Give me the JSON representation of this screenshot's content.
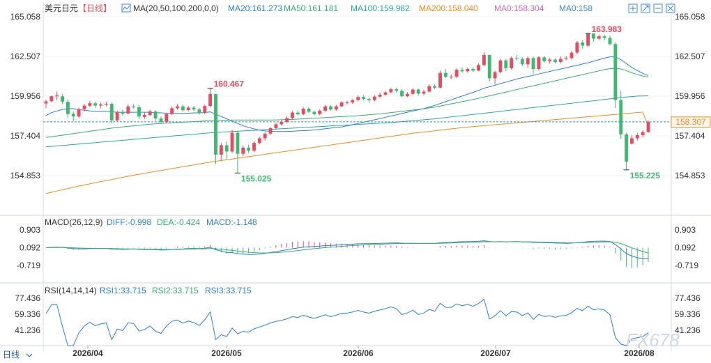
{
  "header": {
    "symbol": "美元日元",
    "period": "【日线】",
    "ma_params": "MA(20,50,100,200,0,0)",
    "ma_items": [
      {
        "label": "MA20:161.273",
        "color": "#2f7fd0"
      },
      {
        "label": "MA50:161.181",
        "color": "#3aaa74"
      },
      {
        "label": "MA100:159.982",
        "color": "#2aa6a6"
      },
      {
        "label": "MA200:158.040",
        "color": "#f08a24"
      },
      {
        "label": "MA0:158.304",
        "color": "#d46aa8"
      },
      {
        "label": "MA0:158",
        "color": "#3f86d8"
      }
    ],
    "toolbar_icons": [
      "image-icon",
      "zoom-in-icon",
      "zoom-out-icon",
      "close-icon"
    ]
  },
  "macd_header": {
    "label": "MACD(26,12,9)",
    "diff": "DIFF:-0.998",
    "dea": "DEA:-0.424",
    "macd": "MACD:-1.148"
  },
  "rsi_header": {
    "label": "RSI(14,14,14)",
    "rsi1": "RSI1:33.715",
    "rsi2": "RSI2:33.715",
    "rsi3": "RSI3:33.715"
  },
  "footer": {
    "period_tab": "日线",
    "x_labels": [
      "2026/04",
      "2026/05",
      "2026/06",
      "2026/07",
      "2026/08"
    ]
  },
  "watermark": "FX678",
  "current_price_tag": "158.307",
  "colors": {
    "up": "#e84a5f",
    "down": "#3dba6f",
    "ma20": "#2f7fd0",
    "ma50": "#3aaa74",
    "ma100": "#2aa6a6",
    "ma200": "#f08a24"
  },
  "chart_data": {
    "type": "candlestick",
    "price_axis_ticks": [
      "165.058",
      "162.507",
      "159.956",
      "157.404",
      "154.853"
    ],
    "macd_axis_ticks": [
      "0.903",
      "0.092",
      "-0.719"
    ],
    "rsi_axis_ticks": [
      "77.436",
      "59.336",
      "41.236"
    ],
    "annotations": [
      {
        "text": "160.467",
        "kind": "high"
      },
      {
        "text": "155.025",
        "kind": "low"
      },
      {
        "text": "163.983",
        "kind": "high"
      },
      {
        "text": "155.225",
        "kind": "low"
      }
    ],
    "candles": [
      [
        159.48,
        159.62,
        159.18,
        159.72,
        1
      ],
      [
        159.63,
        159.95,
        159.55,
        160.0,
        1
      ],
      [
        159.94,
        160.0,
        159.7,
        160.25,
        1
      ],
      [
        159.94,
        159.6,
        159.45,
        160.1,
        0
      ],
      [
        159.6,
        158.8,
        158.55,
        159.75,
        0
      ],
      [
        158.82,
        158.65,
        158.35,
        158.98,
        0
      ],
      [
        158.65,
        159.1,
        158.55,
        159.22,
        1
      ],
      [
        159.12,
        159.35,
        158.95,
        159.45,
        1
      ],
      [
        159.34,
        159.5,
        159.25,
        159.65,
        1
      ],
      [
        159.5,
        159.35,
        159.2,
        159.6,
        0
      ],
      [
        159.35,
        159.42,
        159.18,
        159.55,
        1
      ],
      [
        159.41,
        159.46,
        159.3,
        159.6,
        1
      ],
      [
        159.46,
        158.4,
        158.2,
        159.55,
        0
      ],
      [
        158.4,
        158.95,
        158.3,
        159.02,
        1
      ],
      [
        158.95,
        158.82,
        158.7,
        159.1,
        0
      ],
      [
        158.84,
        159.3,
        158.78,
        159.4,
        1
      ],
      [
        159.3,
        159.25,
        159.15,
        159.45,
        0
      ],
      [
        159.25,
        158.65,
        158.5,
        159.38,
        0
      ],
      [
        158.62,
        158.75,
        158.5,
        158.9,
        1
      ],
      [
        158.74,
        158.98,
        158.68,
        159.08,
        1
      ],
      [
        158.98,
        158.52,
        158.35,
        159.05,
        0
      ],
      [
        158.52,
        158.3,
        158.2,
        158.65,
        0
      ],
      [
        158.3,
        158.8,
        158.2,
        158.9,
        1
      ],
      [
        158.8,
        159.18,
        158.75,
        159.3,
        1
      ],
      [
        159.18,
        159.3,
        159.1,
        159.45,
        1
      ],
      [
        159.3,
        159.05,
        158.95,
        159.4,
        0
      ],
      [
        159.06,
        159.22,
        158.98,
        159.32,
        1
      ],
      [
        159.22,
        159.1,
        158.98,
        159.34,
        0
      ],
      [
        159.1,
        158.88,
        158.78,
        159.2,
        0
      ],
      [
        158.88,
        159.32,
        158.8,
        159.4,
        1
      ],
      [
        159.32,
        160.1,
        159.25,
        160.47,
        1
      ],
      [
        160.1,
        156.2,
        155.6,
        160.1,
        0
      ],
      [
        156.2,
        156.8,
        155.8,
        156.95,
        1
      ],
      [
        156.8,
        156.4,
        155.9,
        157.05,
        0
      ],
      [
        156.4,
        157.6,
        156.3,
        157.8,
        1
      ],
      [
        157.6,
        156.25,
        155.02,
        157.75,
        0
      ],
      [
        156.25,
        156.65,
        156.1,
        156.8,
        1
      ],
      [
        156.65,
        156.45,
        156.3,
        156.85,
        0
      ],
      [
        156.45,
        156.95,
        156.35,
        157.05,
        1
      ],
      [
        156.95,
        157.25,
        156.85,
        157.35,
        1
      ],
      [
        157.25,
        157.55,
        157.1,
        157.65,
        1
      ],
      [
        157.55,
        157.9,
        157.45,
        157.98,
        1
      ],
      [
        157.9,
        158.15,
        157.8,
        158.25,
        1
      ],
      [
        158.15,
        158.3,
        158.05,
        158.42,
        1
      ],
      [
        158.3,
        158.55,
        158.2,
        158.65,
        1
      ],
      [
        158.55,
        158.9,
        158.45,
        159.0,
        1
      ],
      [
        158.9,
        158.8,
        158.7,
        159.05,
        0
      ],
      [
        158.8,
        159.15,
        158.72,
        159.25,
        1
      ],
      [
        159.15,
        158.95,
        158.85,
        159.25,
        0
      ],
      [
        158.95,
        158.8,
        158.7,
        159.02,
        0
      ],
      [
        158.8,
        159.02,
        158.72,
        159.12,
        1
      ],
      [
        159.02,
        159.3,
        158.95,
        159.4,
        1
      ],
      [
        159.3,
        159.1,
        159.0,
        159.38,
        0
      ],
      [
        159.1,
        159.3,
        159.02,
        159.4,
        1
      ],
      [
        159.3,
        159.55,
        159.25,
        159.62,
        1
      ],
      [
        159.55,
        159.55,
        159.42,
        159.65,
        1
      ],
      [
        159.55,
        159.7,
        159.45,
        159.78,
        1
      ],
      [
        159.7,
        159.9,
        159.62,
        160.0,
        1
      ],
      [
        159.9,
        159.78,
        159.68,
        160.02,
        0
      ],
      [
        159.78,
        159.7,
        159.55,
        159.86,
        0
      ],
      [
        159.7,
        159.92,
        159.62,
        160.02,
        1
      ],
      [
        159.92,
        160.05,
        159.85,
        160.18,
        1
      ],
      [
        160.05,
        160.2,
        159.98,
        160.3,
        1
      ],
      [
        160.2,
        160.4,
        160.15,
        160.5,
        1
      ],
      [
        160.4,
        160.3,
        160.18,
        160.5,
        0
      ],
      [
        160.3,
        159.95,
        159.9,
        160.4,
        0
      ],
      [
        159.95,
        160.1,
        159.88,
        160.22,
        1
      ],
      [
        160.1,
        160.38,
        160.02,
        160.48,
        1
      ],
      [
        160.38,
        160.12,
        159.98,
        160.45,
        0
      ],
      [
        160.12,
        160.25,
        160.02,
        160.36,
        1
      ],
      [
        160.25,
        160.6,
        160.18,
        160.7,
        1
      ],
      [
        160.6,
        160.5,
        160.4,
        160.72,
        0
      ],
      [
        160.5,
        161.45,
        160.45,
        161.6,
        1
      ],
      [
        161.45,
        161.2,
        161.1,
        161.7,
        0
      ],
      [
        161.2,
        161.2,
        161.05,
        161.35,
        1
      ],
      [
        161.2,
        161.65,
        161.1,
        161.75,
        1
      ],
      [
        161.65,
        161.55,
        161.45,
        161.8,
        0
      ],
      [
        161.55,
        161.7,
        161.45,
        161.8,
        1
      ],
      [
        161.7,
        161.6,
        161.5,
        161.8,
        0
      ],
      [
        161.6,
        161.95,
        161.55,
        162.05,
        1
      ],
      [
        161.95,
        162.6,
        161.9,
        162.8,
        1
      ],
      [
        162.6,
        161.1,
        160.9,
        162.6,
        0
      ],
      [
        161.1,
        161.5,
        160.7,
        161.6,
        1
      ],
      [
        161.5,
        162.25,
        161.4,
        162.35,
        1
      ],
      [
        162.25,
        161.75,
        161.55,
        162.35,
        0
      ],
      [
        161.75,
        162.4,
        161.65,
        162.5,
        1
      ],
      [
        162.4,
        162.35,
        162.25,
        162.6,
        0
      ],
      [
        162.35,
        162.0,
        161.9,
        162.45,
        0
      ],
      [
        162.0,
        162.4,
        161.8,
        162.5,
        1
      ],
      [
        162.4,
        161.7,
        161.4,
        162.5,
        0
      ],
      [
        161.7,
        162.45,
        161.6,
        162.55,
        1
      ],
      [
        162.45,
        162.2,
        162.1,
        162.55,
        0
      ],
      [
        162.2,
        162.3,
        162.05,
        162.4,
        1
      ],
      [
        162.3,
        162.15,
        162.05,
        162.4,
        0
      ],
      [
        162.15,
        162.35,
        162.05,
        162.5,
        1
      ],
      [
        162.35,
        162.4,
        162.25,
        162.55,
        1
      ],
      [
        162.4,
        162.75,
        162.3,
        162.85,
        1
      ],
      [
        162.75,
        163.4,
        162.65,
        163.5,
        1
      ],
      [
        163.4,
        163.2,
        163.0,
        163.55,
        0
      ],
      [
        163.2,
        163.98,
        163.1,
        163.98,
        1
      ],
      [
        163.98,
        163.65,
        163.45,
        163.98,
        0
      ],
      [
        163.65,
        163.8,
        163.55,
        163.92,
        1
      ],
      [
        163.8,
        163.7,
        163.55,
        163.9,
        0
      ],
      [
        163.7,
        163.3,
        163.2,
        163.85,
        0
      ],
      [
        163.3,
        159.7,
        159.2,
        163.4,
        0
      ],
      [
        159.7,
        157.5,
        157.2,
        160.3,
        0
      ],
      [
        157.5,
        155.75,
        155.22,
        157.6,
        0
      ],
      [
        156.9,
        157.25,
        156.85,
        157.45,
        1
      ],
      [
        157.25,
        157.45,
        157.1,
        157.6,
        1
      ],
      [
        157.45,
        157.65,
        157.3,
        157.75,
        1
      ],
      [
        157.65,
        158.31,
        157.6,
        158.4,
        1
      ]
    ],
    "ma20": [
      158.7,
      158.9,
      159.0,
      159.1,
      159.15,
      159.15,
      159.1,
      159.05,
      159.0,
      158.98,
      158.98,
      158.98,
      158.95,
      158.92,
      158.92,
      158.92,
      158.92,
      158.92,
      158.92,
      158.92,
      158.9,
      158.88,
      158.86,
      158.84,
      158.84,
      158.84,
      158.86,
      158.88,
      158.88,
      158.9,
      158.95,
      158.8,
      158.65,
      158.5,
      158.35,
      158.2,
      158.05,
      157.95,
      157.85,
      157.78,
      157.72,
      157.7,
      157.68,
      157.68,
      157.69,
      157.7,
      157.72,
      157.74,
      157.76,
      157.78,
      157.82,
      157.86,
      157.9,
      157.94,
      157.98,
      158.05,
      158.12,
      158.2,
      158.28,
      158.36,
      158.44,
      158.52,
      158.6,
      158.68,
      158.76,
      158.84,
      158.92,
      159.0,
      159.08,
      159.16,
      159.26,
      159.36,
      159.48,
      159.6,
      159.72,
      159.84,
      159.96,
      160.08,
      160.2,
      160.32,
      160.46,
      160.56,
      160.66,
      160.76,
      160.86,
      160.96,
      161.06,
      161.14,
      161.22,
      161.3,
      161.38,
      161.46,
      161.54,
      161.62,
      161.7,
      161.78,
      161.86,
      161.94,
      162.02,
      162.1,
      162.2,
      162.3,
      162.4,
      162.48,
      162.48,
      162.3,
      162.05,
      161.8,
      161.6,
      161.42,
      161.27
    ],
    "ma50": [
      157.3,
      157.35,
      157.4,
      157.45,
      157.5,
      157.55,
      157.6,
      157.65,
      157.7,
      157.75,
      157.8,
      157.85,
      157.9,
      157.94,
      157.98,
      158.02,
      158.05,
      158.08,
      158.12,
      158.15,
      158.18,
      158.2,
      158.22,
      158.24,
      158.26,
      158.28,
      158.3,
      158.32,
      158.34,
      158.36,
      158.38,
      158.39,
      158.4,
      158.41,
      158.42,
      158.42,
      158.42,
      158.42,
      158.42,
      158.42,
      158.42,
      158.42,
      158.43,
      158.44,
      158.45,
      158.46,
      158.48,
      158.5,
      158.52,
      158.54,
      158.56,
      158.58,
      158.6,
      158.62,
      158.64,
      158.66,
      158.68,
      158.7,
      158.73,
      158.76,
      158.79,
      158.82,
      158.86,
      158.9,
      158.94,
      158.98,
      159.02,
      159.06,
      159.1,
      159.15,
      159.2,
      159.25,
      159.32,
      159.39,
      159.46,
      159.53,
      159.6,
      159.67,
      159.74,
      159.81,
      159.9,
      159.98,
      160.06,
      160.14,
      160.22,
      160.3,
      160.38,
      160.46,
      160.54,
      160.62,
      160.7,
      160.78,
      160.86,
      160.94,
      161.02,
      161.1,
      161.18,
      161.26,
      161.34,
      161.42,
      161.5,
      161.58,
      161.66,
      161.72,
      161.74,
      161.7,
      161.6,
      161.45,
      161.35,
      161.25,
      161.18
    ],
    "ma100": [
      156.7,
      156.73,
      156.76,
      156.79,
      156.82,
      156.85,
      156.88,
      156.91,
      156.94,
      156.97,
      157.0,
      157.03,
      157.06,
      157.09,
      157.12,
      157.15,
      157.18,
      157.21,
      157.24,
      157.27,
      157.3,
      157.33,
      157.36,
      157.39,
      157.42,
      157.45,
      157.48,
      157.51,
      157.54,
      157.57,
      157.6,
      157.62,
      157.64,
      157.66,
      157.68,
      157.7,
      157.72,
      157.74,
      157.76,
      157.78,
      157.8,
      157.82,
      157.84,
      157.86,
      157.88,
      157.9,
      157.92,
      157.94,
      157.96,
      157.98,
      158.0,
      158.02,
      158.04,
      158.06,
      158.08,
      158.1,
      158.12,
      158.14,
      158.16,
      158.18,
      158.2,
      158.22,
      158.24,
      158.26,
      158.29,
      158.32,
      158.35,
      158.38,
      158.41,
      158.44,
      158.47,
      158.5,
      158.54,
      158.58,
      158.62,
      158.66,
      158.7,
      158.74,
      158.78,
      158.82,
      158.86,
      158.9,
      158.94,
      158.98,
      159.02,
      159.06,
      159.1,
      159.14,
      159.18,
      159.22,
      159.26,
      159.3,
      159.34,
      159.38,
      159.42,
      159.46,
      159.5,
      159.54,
      159.58,
      159.62,
      159.66,
      159.7,
      159.74,
      159.78,
      159.82,
      159.86,
      159.9,
      159.93,
      159.96,
      159.97,
      159.98
    ],
    "ma200": [
      153.7,
      153.78,
      153.86,
      153.94,
      154.02,
      154.1,
      154.18,
      154.25,
      154.32,
      154.39,
      154.46,
      154.53,
      154.6,
      154.67,
      154.74,
      154.81,
      154.88,
      154.94,
      155.0,
      155.06,
      155.12,
      155.18,
      155.24,
      155.3,
      155.36,
      155.42,
      155.48,
      155.54,
      155.6,
      155.66,
      155.72,
      155.77,
      155.82,
      155.87,
      155.92,
      155.97,
      156.02,
      156.07,
      156.12,
      156.17,
      156.22,
      156.27,
      156.32,
      156.37,
      156.42,
      156.47,
      156.52,
      156.57,
      156.62,
      156.67,
      156.72,
      156.77,
      156.82,
      156.87,
      156.92,
      156.97,
      157.02,
      157.07,
      157.12,
      157.17,
      157.22,
      157.27,
      157.32,
      157.37,
      157.42,
      157.47,
      157.52,
      157.57,
      157.61,
      157.65,
      157.69,
      157.73,
      157.77,
      157.81,
      157.85,
      157.89,
      157.93,
      157.97,
      158.0,
      158.03,
      158.06,
      158.09,
      158.12,
      158.15,
      158.18,
      158.21,
      158.24,
      158.27,
      158.3,
      158.33,
      158.36,
      158.39,
      158.42,
      158.45,
      158.48,
      158.51,
      158.54,
      158.57,
      158.6,
      158.63,
      158.66,
      158.69,
      158.72,
      158.75,
      158.78,
      158.81,
      158.84,
      158.87,
      158.9,
      158.93,
      158.04
    ]
  }
}
